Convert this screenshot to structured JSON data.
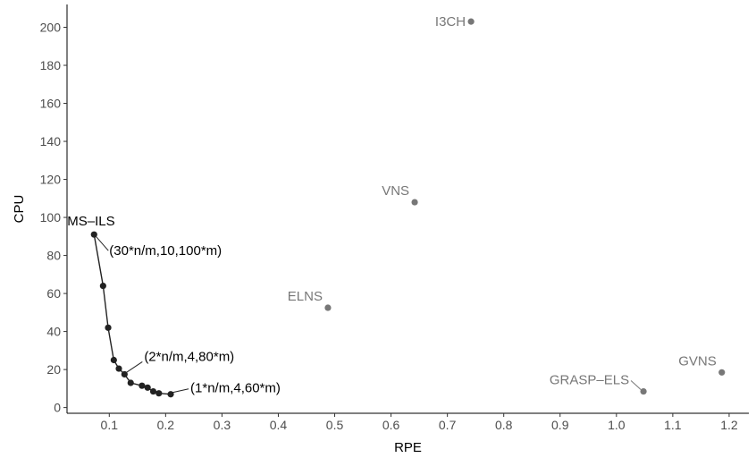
{
  "chart_data": {
    "type": "scatter",
    "xlabel": "RPE",
    "ylabel": "CPU",
    "xlim": [
      0.025,
      1.235
    ],
    "ylim": [
      -3,
      212
    ],
    "xticks": [
      0.1,
      0.2,
      0.3,
      0.4,
      0.5,
      0.6,
      0.7,
      0.8,
      0.9,
      1.0,
      1.1,
      1.2
    ],
    "xtick_labels": [
      "0.1",
      "0.2",
      "0.3",
      "0.4",
      "0.5",
      "0.6",
      "0.7",
      "0.8",
      "0.9",
      "1.0",
      "1.1",
      "1.2"
    ],
    "yticks": [
      0,
      20,
      40,
      60,
      80,
      100,
      120,
      140,
      160,
      180,
      200
    ],
    "ytick_labels": [
      "0",
      "20",
      "40",
      "60",
      "80",
      "100",
      "120",
      "140",
      "160",
      "180",
      "200"
    ],
    "grid": false,
    "ms_ils": {
      "name": "MS–ILS",
      "color": "#222222",
      "points": [
        {
          "x": 0.073,
          "y": 91
        },
        {
          "x": 0.089,
          "y": 64
        },
        {
          "x": 0.098,
          "y": 42
        },
        {
          "x": 0.108,
          "y": 25
        },
        {
          "x": 0.117,
          "y": 20.5
        },
        {
          "x": 0.127,
          "y": 17.5
        },
        {
          "x": 0.138,
          "y": 13
        },
        {
          "x": 0.158,
          "y": 11.5
        },
        {
          "x": 0.168,
          "y": 10.5
        },
        {
          "x": 0.178,
          "y": 8.5
        },
        {
          "x": 0.188,
          "y": 7.5
        },
        {
          "x": 0.209,
          "y": 7
        }
      ],
      "annotations": [
        {
          "text": "(30*n/m,10,100*m)",
          "x": 0.073,
          "y": 91
        },
        {
          "text": "(2*n/m,4,80*m)",
          "x": 0.127,
          "y": 17.5
        },
        {
          "text": "(1*n/m,4,60*m)",
          "x": 0.209,
          "y": 7
        }
      ]
    },
    "others": {
      "color": "#777777",
      "points": [
        {
          "name": "I3CH",
          "x": 0.742,
          "y": 203
        },
        {
          "name": "VNS",
          "x": 0.642,
          "y": 108
        },
        {
          "name": "ELNS",
          "x": 0.488,
          "y": 52.5
        },
        {
          "name": "GRASP–ELS",
          "x": 1.048,
          "y": 8.5
        },
        {
          "name": "GVNS",
          "x": 1.187,
          "y": 18.5
        }
      ]
    }
  }
}
